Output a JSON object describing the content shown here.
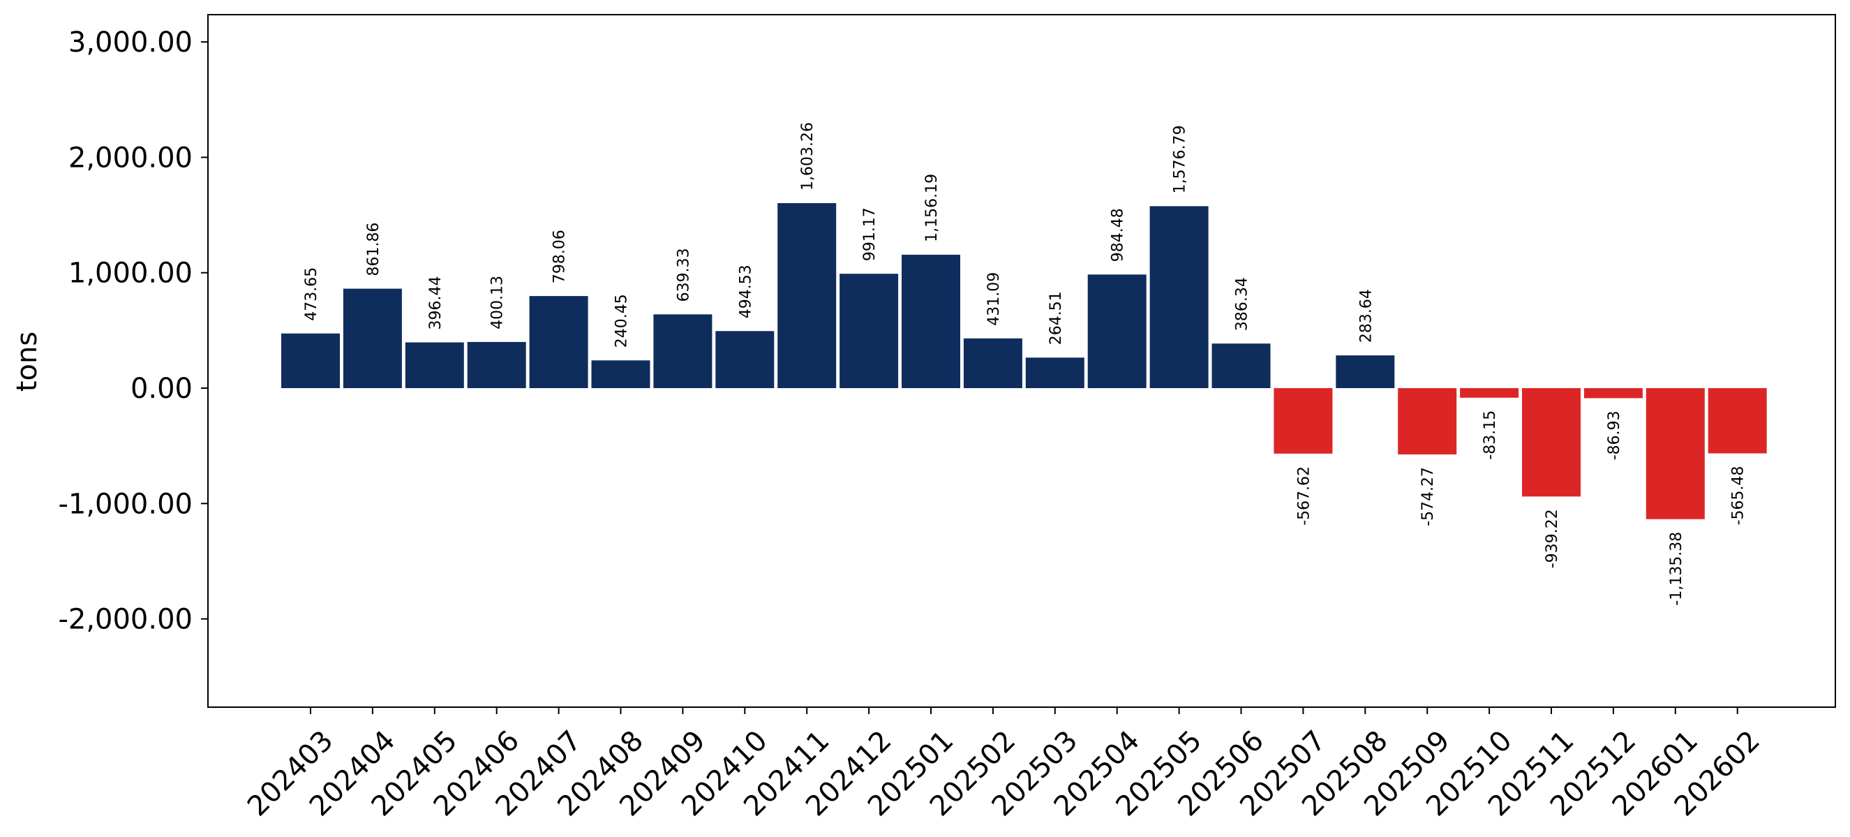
{
  "chart_data": {
    "type": "bar",
    "xlabel": "",
    "ylabel": "tons",
    "ylim": [
      -2800,
      3250
    ],
    "yticks": [
      3000,
      2000,
      1000,
      0,
      -1000,
      -2000
    ],
    "ytick_labels": [
      "3,000.00",
      "2,000.00",
      "1,000.00",
      "0.00",
      "-1,000.00",
      "-2,000.00"
    ],
    "grid": false,
    "legend": "none",
    "colors": {
      "positive": "#0f2d5c",
      "negative": "#dc2626"
    },
    "categories": [
      "202403",
      "202404",
      "202405",
      "202406",
      "202407",
      "202408",
      "202409",
      "202410",
      "202411",
      "202412",
      "202501",
      "202502",
      "202503",
      "202504",
      "202505",
      "202506",
      "202507",
      "202508",
      "202509",
      "202510",
      "202511",
      "202512",
      "202601",
      "202602"
    ],
    "values": [
      473.65,
      861.86,
      396.44,
      400.13,
      798.06,
      240.45,
      639.33,
      494.53,
      1603.26,
      991.17,
      1156.19,
      431.09,
      264.51,
      984.48,
      1576.79,
      386.34,
      -567.62,
      283.64,
      -574.27,
      -83.15,
      -939.22,
      -86.93,
      -1135.38,
      -565.48
    ],
    "value_labels": [
      "473.65",
      "861.86",
      "396.44",
      "400.13",
      "798.06",
      "240.45",
      "639.33",
      "494.53",
      "1,603.26",
      "991.17",
      "1,156.19",
      "431.09",
      "264.51",
      "984.48",
      "1,576.79",
      "386.34",
      "-567.62",
      "283.64",
      "-574.27",
      "-83.15",
      "-939.22",
      "-86.93",
      "-1,135.38",
      "-565.48"
    ]
  }
}
